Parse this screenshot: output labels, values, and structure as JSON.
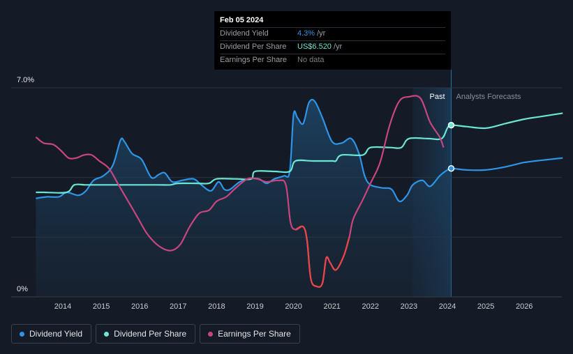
{
  "tooltip": {
    "date": "Feb 05 2024",
    "rows": [
      {
        "label": "Dividend Yield",
        "value": "4.3%",
        "unit": "/yr",
        "color": "#2e94e6"
      },
      {
        "label": "Dividend Per Share",
        "value": "US$6.520",
        "unit": "/yr",
        "color": "#6be6d2"
      },
      {
        "label": "Earnings Per Share",
        "value": "No data",
        "unit": "",
        "color": "#7a7e85"
      }
    ]
  },
  "legend": [
    {
      "label": "Dividend Yield",
      "color": "#2e94e6"
    },
    {
      "label": "Dividend Per Share",
      "color": "#6be6d2"
    },
    {
      "label": "Earnings Per Share",
      "color": "#c9457f"
    }
  ],
  "chart_data": {
    "type": "line",
    "y_tick_labels": [
      "7.0%",
      "0%"
    ],
    "ylim": [
      0,
      7.0
    ],
    "xlim": [
      2013.3,
      2027.0
    ],
    "x_ticks": [
      2014,
      2015,
      2016,
      2017,
      2018,
      2019,
      2020,
      2021,
      2022,
      2023,
      2024,
      2025,
      2026
    ],
    "past_label": "Past",
    "forecast_label": "Analysts Forecasts",
    "divider_x": 2024.1,
    "past_shade_start": 2023.1,
    "grid": true,
    "series": [
      {
        "name": "Dividend Yield",
        "color": "#2e94e6",
        "area": true,
        "points": [
          [
            2013.3,
            3.3
          ],
          [
            2013.6,
            3.35
          ],
          [
            2013.9,
            3.35
          ],
          [
            2014.1,
            3.5
          ],
          [
            2014.4,
            3.4
          ],
          [
            2014.6,
            3.55
          ],
          [
            2014.8,
            3.9
          ],
          [
            2015.05,
            4.05
          ],
          [
            2015.3,
            4.4
          ],
          [
            2015.5,
            5.25
          ],
          [
            2015.6,
            5.2
          ],
          [
            2015.8,
            4.8
          ],
          [
            2016.05,
            4.6
          ],
          [
            2016.3,
            4.0
          ],
          [
            2016.5,
            4.1
          ],
          [
            2016.65,
            4.15
          ],
          [
            2016.85,
            3.85
          ],
          [
            2017.1,
            3.9
          ],
          [
            2017.4,
            3.95
          ],
          [
            2017.6,
            3.75
          ],
          [
            2017.85,
            3.55
          ],
          [
            2018.05,
            3.85
          ],
          [
            2018.2,
            3.6
          ],
          [
            2018.35,
            3.6
          ],
          [
            2018.6,
            3.85
          ],
          [
            2018.85,
            3.95
          ],
          [
            2019.1,
            3.95
          ],
          [
            2019.3,
            3.8
          ],
          [
            2019.5,
            3.95
          ],
          [
            2019.75,
            4.05
          ],
          [
            2019.9,
            4.2
          ],
          [
            2020.0,
            6.1
          ],
          [
            2020.1,
            6.0
          ],
          [
            2020.25,
            5.8
          ],
          [
            2020.4,
            6.5
          ],
          [
            2020.55,
            6.55
          ],
          [
            2020.75,
            6.0
          ],
          [
            2021.0,
            5.2
          ],
          [
            2021.25,
            5.15
          ],
          [
            2021.5,
            5.3
          ],
          [
            2021.7,
            4.8
          ],
          [
            2021.85,
            4.05
          ],
          [
            2022.0,
            3.75
          ],
          [
            2022.3,
            3.65
          ],
          [
            2022.55,
            3.6
          ],
          [
            2022.75,
            3.2
          ],
          [
            2022.95,
            3.4
          ],
          [
            2023.1,
            3.75
          ],
          [
            2023.35,
            3.9
          ],
          [
            2023.55,
            3.7
          ],
          [
            2023.8,
            4.05
          ],
          [
            2024.0,
            4.25
          ],
          [
            2024.1,
            4.3
          ],
          [
            2024.5,
            4.25
          ],
          [
            2025.0,
            4.25
          ],
          [
            2025.5,
            4.35
          ],
          [
            2026.0,
            4.5
          ],
          [
            2026.5,
            4.58
          ],
          [
            2027.0,
            4.65
          ]
        ]
      },
      {
        "name": "Dividend Per Share",
        "color": "#6be6d2",
        "points": [
          [
            2013.3,
            3.5
          ],
          [
            2013.5,
            3.5
          ],
          [
            2014.1,
            3.5
          ],
          [
            2014.3,
            3.75
          ],
          [
            2014.6,
            3.75
          ],
          [
            2015.0,
            3.75
          ],
          [
            2015.5,
            3.75
          ],
          [
            2016.0,
            3.75
          ],
          [
            2016.5,
            3.75
          ],
          [
            2016.8,
            3.75
          ],
          [
            2017.0,
            3.8
          ],
          [
            2017.5,
            3.8
          ],
          [
            2017.8,
            3.8
          ],
          [
            2018.0,
            3.95
          ],
          [
            2018.5,
            3.95
          ],
          [
            2018.9,
            3.95
          ],
          [
            2019.0,
            4.2
          ],
          [
            2019.5,
            4.2
          ],
          [
            2019.9,
            4.2
          ],
          [
            2020.05,
            4.55
          ],
          [
            2020.5,
            4.55
          ],
          [
            2021.0,
            4.55
          ],
          [
            2021.1,
            4.55
          ],
          [
            2021.25,
            4.75
          ],
          [
            2021.8,
            4.75
          ],
          [
            2022.0,
            5.0
          ],
          [
            2022.5,
            5.0
          ],
          [
            2022.8,
            5.0
          ],
          [
            2023.0,
            5.3
          ],
          [
            2023.5,
            5.3
          ],
          [
            2023.85,
            5.3
          ],
          [
            2024.0,
            5.65
          ],
          [
            2024.1,
            5.75
          ],
          [
            2024.5,
            5.7
          ],
          [
            2025.0,
            5.65
          ],
          [
            2025.5,
            5.8
          ],
          [
            2026.0,
            5.95
          ],
          [
            2026.5,
            6.05
          ],
          [
            2027.0,
            6.15
          ]
        ]
      },
      {
        "name": "Earnings Per Share",
        "color": "#c9457f",
        "negative_color": "#e84646",
        "points": [
          [
            2013.3,
            5.35
          ],
          [
            2013.5,
            5.15
          ],
          [
            2013.75,
            5.1
          ],
          [
            2013.95,
            4.9
          ],
          [
            2014.15,
            4.65
          ],
          [
            2014.35,
            4.65
          ],
          [
            2014.55,
            4.75
          ],
          [
            2014.75,
            4.75
          ],
          [
            2014.95,
            4.55
          ],
          [
            2015.2,
            4.3
          ],
          [
            2015.45,
            3.75
          ],
          [
            2015.7,
            3.2
          ],
          [
            2015.95,
            2.65
          ],
          [
            2016.2,
            2.1
          ],
          [
            2016.5,
            1.7
          ],
          [
            2016.8,
            1.55
          ],
          [
            2017.05,
            1.75
          ],
          [
            2017.3,
            2.35
          ],
          [
            2017.55,
            2.8
          ],
          [
            2017.8,
            2.9
          ],
          [
            2018.0,
            3.2
          ],
          [
            2018.25,
            3.35
          ],
          [
            2018.5,
            3.65
          ],
          [
            2018.8,
            3.95
          ],
          [
            2019.05,
            3.95
          ],
          [
            2019.3,
            3.85
          ],
          [
            2019.6,
            3.9
          ],
          [
            2019.8,
            3.75
          ],
          [
            2019.92,
            2.5
          ],
          [
            2020.05,
            2.25
          ],
          [
            2020.25,
            2.35
          ],
          [
            2020.35,
            1.9
          ],
          [
            2020.45,
            0.6
          ],
          [
            2020.6,
            0.35
          ],
          [
            2020.75,
            0.45
          ],
          [
            2020.85,
            1.3
          ],
          [
            2020.95,
            1.15
          ],
          [
            2021.1,
            0.9
          ],
          [
            2021.3,
            1.35
          ],
          [
            2021.45,
            2.0
          ],
          [
            2021.55,
            2.6
          ],
          [
            2021.8,
            3.25
          ],
          [
            2022.0,
            3.8
          ],
          [
            2022.25,
            4.5
          ],
          [
            2022.5,
            5.75
          ],
          [
            2022.75,
            6.55
          ],
          [
            2023.0,
            6.7
          ],
          [
            2023.3,
            6.65
          ],
          [
            2023.55,
            5.85
          ],
          [
            2023.8,
            5.35
          ],
          [
            2023.9,
            5.0
          ]
        ]
      }
    ]
  }
}
